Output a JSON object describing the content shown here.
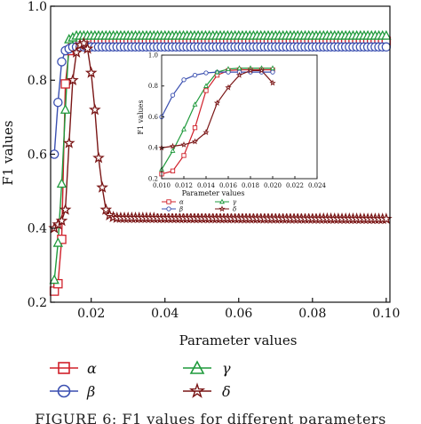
{
  "figure": {
    "caption": "FIGURE 6: F1 values for different parameters"
  },
  "chart_data": [
    {
      "type": "line",
      "title": "",
      "xlabel": "Parameter values",
      "ylabel": "F1 values",
      "xlim": [
        0.009,
        0.101
      ],
      "ylim": [
        0.2,
        1.0
      ],
      "xticks": [
        0.02,
        0.04,
        0.06,
        0.08,
        0.1
      ],
      "xtick_labels": [
        "0.02",
        "0.04",
        "0.06",
        "0.08",
        "0.10"
      ],
      "yticks": [
        0.2,
        0.4,
        0.6,
        0.8,
        1.0
      ],
      "ytick_labels": [
        "0.2",
        "0.4",
        "0.6",
        "0.8",
        "1.0"
      ],
      "legend_position": "bottom",
      "series": [
        {
          "name": "α",
          "marker": "square",
          "color": "#d0202a",
          "points": [
            [
              0.01,
              0.23
            ],
            [
              0.011,
              0.25
            ],
            [
              0.012,
              0.37
            ],
            [
              0.013,
              0.79
            ],
            [
              0.014,
              0.88
            ],
            [
              0.015,
              0.9
            ],
            [
              0.016,
              0.905
            ],
            [
              0.017,
              0.905
            ],
            [
              0.018,
              0.905
            ],
            [
              0.1,
              0.905
            ]
          ]
        },
        {
          "name": "β",
          "marker": "circle",
          "color": "#3a4fb0",
          "points": [
            [
              0.01,
              0.6
            ],
            [
              0.011,
              0.74
            ],
            [
              0.012,
              0.85
            ],
            [
              0.013,
              0.88
            ],
            [
              0.014,
              0.885
            ],
            [
              0.015,
              0.89
            ],
            [
              0.016,
              0.89
            ],
            [
              0.1,
              0.89
            ]
          ]
        },
        {
          "name": "γ",
          "marker": "triangle",
          "color": "#1f9a3c",
          "points": [
            [
              0.01,
              0.26
            ],
            [
              0.011,
              0.36
            ],
            [
              0.012,
              0.52
            ],
            [
              0.013,
              0.72
            ],
            [
              0.014,
              0.91
            ],
            [
              0.015,
              0.915
            ],
            [
              0.016,
              0.92
            ],
            [
              0.1,
              0.92
            ]
          ]
        },
        {
          "name": "δ",
          "marker": "star",
          "color": "#7a1616",
          "points": [
            [
              0.01,
              0.4
            ],
            [
              0.011,
              0.41
            ],
            [
              0.012,
              0.42
            ],
            [
              0.013,
              0.45
            ],
            [
              0.014,
              0.63
            ],
            [
              0.015,
              0.8
            ],
            [
              0.016,
              0.875
            ],
            [
              0.017,
              0.895
            ],
            [
              0.018,
              0.9
            ],
            [
              0.019,
              0.885
            ],
            [
              0.02,
              0.82
            ],
            [
              0.021,
              0.72
            ],
            [
              0.022,
              0.59
            ],
            [
              0.023,
              0.51
            ],
            [
              0.024,
              0.45
            ],
            [
              0.025,
              0.435
            ],
            [
              0.026,
              0.43
            ],
            [
              0.027,
              0.428
            ],
            [
              0.1,
              0.425
            ]
          ]
        }
      ]
    },
    {
      "type": "line",
      "role": "inset",
      "title": "",
      "xlabel": "Parameter values",
      "ylabel": "F1 values",
      "xlim": [
        0.01,
        0.024
      ],
      "ylim": [
        0.2,
        1.0
      ],
      "xticks": [
        0.01,
        0.012,
        0.014,
        0.016,
        0.018,
        0.02,
        0.022,
        0.024
      ],
      "xtick_labels": [
        "0.010",
        "0.012",
        "0.014",
        "0.016",
        "0.018",
        "0.020",
        "0.022",
        "0.024"
      ],
      "yticks": [
        0.2,
        0.4,
        0.6,
        0.8,
        1.0
      ],
      "ytick_labels": [
        "0.2",
        "0.4",
        "0.6",
        "0.8",
        "1.0"
      ],
      "legend_position": "bottom",
      "series": [
        {
          "name": "α",
          "marker": "square",
          "color": "#d0202a",
          "points": [
            [
              0.01,
              0.23
            ],
            [
              0.011,
              0.25
            ],
            [
              0.012,
              0.35
            ],
            [
              0.013,
              0.53
            ],
            [
              0.014,
              0.77
            ],
            [
              0.015,
              0.87
            ],
            [
              0.016,
              0.9
            ],
            [
              0.017,
              0.905
            ],
            [
              0.018,
              0.905
            ],
            [
              0.019,
              0.905
            ],
            [
              0.02,
              0.905
            ]
          ]
        },
        {
          "name": "β",
          "marker": "circle",
          "color": "#3a4fb0",
          "points": [
            [
              0.01,
              0.6
            ],
            [
              0.011,
              0.74
            ],
            [
              0.012,
              0.84
            ],
            [
              0.013,
              0.87
            ],
            [
              0.014,
              0.885
            ],
            [
              0.015,
              0.89
            ],
            [
              0.016,
              0.89
            ],
            [
              0.017,
              0.89
            ],
            [
              0.018,
              0.89
            ],
            [
              0.019,
              0.89
            ],
            [
              0.02,
              0.89
            ]
          ]
        },
        {
          "name": "γ",
          "marker": "triangle",
          "color": "#1f9a3c",
          "points": [
            [
              0.01,
              0.26
            ],
            [
              0.011,
              0.38
            ],
            [
              0.012,
              0.52
            ],
            [
              0.013,
              0.68
            ],
            [
              0.014,
              0.8
            ],
            [
              0.015,
              0.89
            ],
            [
              0.016,
              0.91
            ],
            [
              0.017,
              0.915
            ],
            [
              0.018,
              0.915
            ],
            [
              0.019,
              0.915
            ],
            [
              0.02,
              0.915
            ]
          ]
        },
        {
          "name": "δ",
          "marker": "star",
          "color": "#7a1616",
          "points": [
            [
              0.01,
              0.4
            ],
            [
              0.011,
              0.41
            ],
            [
              0.012,
              0.42
            ],
            [
              0.013,
              0.44
            ],
            [
              0.014,
              0.5
            ],
            [
              0.015,
              0.69
            ],
            [
              0.016,
              0.79
            ],
            [
              0.017,
              0.87
            ],
            [
              0.018,
              0.9
            ],
            [
              0.019,
              0.9
            ],
            [
              0.02,
              0.82
            ]
          ]
        }
      ]
    }
  ]
}
